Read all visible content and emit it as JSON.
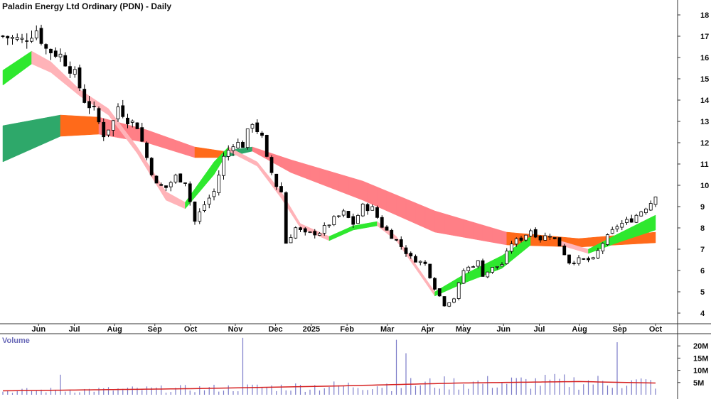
{
  "chart_data": {
    "type": "candlestick",
    "title": "Paladin Energy Ltd Ordinary (PDN) - Daily",
    "price_axis": {
      "ylim": [
        3.5,
        18.7
      ],
      "ticks": [
        4,
        5,
        6,
        7,
        8,
        9,
        10,
        11,
        12,
        13,
        14,
        15,
        16,
        17,
        18
      ],
      "side": "right"
    },
    "x_axis_labels": [
      "Jun",
      "Jul",
      "Aug",
      "Sep",
      "Oct",
      "Nov",
      "Dec",
      "2025",
      "Feb",
      "Mar",
      "Apr",
      "May",
      "Jun",
      "Jul",
      "Aug",
      "Sep",
      "Oct"
    ],
    "volume_panel": {
      "label": "Volume",
      "ylim": [
        0,
        25000000
      ],
      "ticks": [
        "5M",
        "10M",
        "15M",
        "20M"
      ],
      "tick_values": [
        5000000,
        10000000,
        15000000,
        20000000
      ]
    },
    "price_path_anchors": [
      [
        0,
        17.0
      ],
      [
        4,
        16.8
      ],
      [
        7,
        17.3
      ],
      [
        9,
        16.4
      ],
      [
        12,
        16.1
      ],
      [
        15,
        15.2
      ],
      [
        17,
        14.0
      ],
      [
        19,
        13.5
      ],
      [
        21,
        12.4
      ],
      [
        23,
        13.0
      ],
      [
        24,
        13.7
      ],
      [
        26,
        13.1
      ],
      [
        28,
        12.8
      ],
      [
        30,
        11.3
      ],
      [
        32,
        10.0
      ],
      [
        34,
        9.9
      ],
      [
        36,
        10.4
      ],
      [
        38,
        10.2
      ],
      [
        40,
        8.3
      ],
      [
        42,
        9.1
      ],
      [
        44,
        9.7
      ],
      [
        46,
        11.3
      ],
      [
        48,
        12.0
      ],
      [
        50,
        11.9
      ],
      [
        52,
        13.0
      ],
      [
        54,
        12.2
      ],
      [
        55,
        11.2
      ],
      [
        57,
        10.0
      ],
      [
        58,
        9.7
      ],
      [
        59,
        7.3
      ],
      [
        61,
        8.0
      ],
      [
        63,
        7.7
      ],
      [
        66,
        7.8
      ],
      [
        69,
        8.4
      ],
      [
        71,
        8.7
      ],
      [
        73,
        8.2
      ],
      [
        75,
        9.0
      ],
      [
        77,
        8.9
      ],
      [
        79,
        8.1
      ],
      [
        82,
        7.4
      ],
      [
        85,
        6.6
      ],
      [
        88,
        6.3
      ],
      [
        90,
        5.2
      ],
      [
        92,
        4.4
      ],
      [
        94,
        4.7
      ],
      [
        96,
        6.0
      ],
      [
        99,
        6.4
      ],
      [
        100,
        5.8
      ],
      [
        102,
        6.1
      ],
      [
        104,
        6.3
      ],
      [
        106,
        7.3
      ],
      [
        108,
        7.5
      ],
      [
        110,
        7.9
      ],
      [
        112,
        7.5
      ],
      [
        114,
        7.7
      ],
      [
        116,
        7.2
      ],
      [
        118,
        6.4
      ],
      [
        120,
        6.5
      ],
      [
        123,
        6.5
      ],
      [
        125,
        7.3
      ],
      [
        128,
        8.1
      ],
      [
        131,
        8.4
      ],
      [
        133,
        8.8
      ],
      [
        135,
        9.2
      ],
      [
        136,
        9.6
      ]
    ],
    "series": [
      {
        "name": "Volume",
        "kind": "bars",
        "color": "#7b7bc8"
      },
      {
        "name": "",
        "kind": "line",
        "color": "#d62020",
        "values_millions": [
          [
            0,
            1.6
          ],
          [
            40,
            2.5
          ],
          [
            70,
            3.6
          ],
          [
            95,
            4.8
          ],
          [
            120,
            5.4
          ],
          [
            136,
            4.8
          ]
        ]
      }
    ],
    "volume_spikes": [
      {
        "bar": 12,
        "volume": 8200000
      },
      {
        "bar": 50,
        "volume": 23300000
      },
      {
        "bar": 82,
        "volume": 22500000
      },
      {
        "bar": 84,
        "volume": 17000000
      },
      {
        "bar": 128,
        "volume": 21500000
      }
    ],
    "ribbons": [
      {
        "name": "",
        "kind": "long-term",
        "start_bar": 0,
        "top": [
          [
            0,
            12.8
          ],
          [
            12,
            13.3
          ],
          [
            20,
            13.2
          ],
          [
            30,
            12.6
          ],
          [
            40,
            11.8
          ],
          [
            46,
            11.6
          ],
          [
            52,
            11.8
          ],
          [
            60,
            11.2
          ],
          [
            75,
            10.2
          ],
          [
            90,
            8.8
          ],
          [
            105,
            7.8
          ],
          [
            120,
            7.5
          ],
          [
            136,
            7.8
          ]
        ],
        "bottom": [
          [
            0,
            11.1
          ],
          [
            12,
            12.3
          ],
          [
            20,
            12.4
          ],
          [
            30,
            12.0
          ],
          [
            40,
            11.3
          ],
          [
            46,
            11.3
          ],
          [
            52,
            11.6
          ],
          [
            60,
            10.6
          ],
          [
            75,
            9.3
          ],
          [
            90,
            7.8
          ],
          [
            105,
            7.2
          ],
          [
            120,
            7.1
          ],
          [
            136,
            7.3
          ]
        ],
        "colors": {
          "up": "#2ea86a",
          "transition": "#ff6a1a",
          "down": "#ff7f86"
        }
      },
      {
        "name": "",
        "kind": "short-term",
        "start_bar": 0,
        "top": [
          [
            0,
            15.4
          ],
          [
            6,
            16.3
          ],
          [
            10,
            15.8
          ],
          [
            16,
            14.5
          ],
          [
            22,
            13.6
          ],
          [
            28,
            11.8
          ],
          [
            34,
            9.7
          ],
          [
            38,
            9.2
          ],
          [
            44,
            11.1
          ],
          [
            47,
            11.8
          ],
          [
            53,
            11.1
          ],
          [
            58,
            9.7
          ],
          [
            62,
            8.2
          ],
          [
            68,
            7.6
          ],
          [
            73,
            8.1
          ],
          [
            78,
            8.3
          ],
          [
            82,
            7.6
          ],
          [
            90,
            5.0
          ],
          [
            96,
            5.8
          ],
          [
            104,
            6.7
          ],
          [
            110,
            7.6
          ],
          [
            116,
            7.4
          ],
          [
            122,
            7.0
          ],
          [
            128,
            7.7
          ],
          [
            136,
            8.6
          ]
        ],
        "bottom": [
          [
            0,
            14.7
          ],
          [
            6,
            15.7
          ],
          [
            10,
            15.3
          ],
          [
            16,
            14.2
          ],
          [
            22,
            13.3
          ],
          [
            28,
            11.5
          ],
          [
            34,
            9.3
          ],
          [
            38,
            8.9
          ],
          [
            44,
            10.5
          ],
          [
            47,
            11.6
          ],
          [
            53,
            10.9
          ],
          [
            58,
            9.4
          ],
          [
            62,
            8.0
          ],
          [
            68,
            7.4
          ],
          [
            73,
            7.9
          ],
          [
            78,
            8.1
          ],
          [
            82,
            7.4
          ],
          [
            90,
            4.8
          ],
          [
            96,
            5.4
          ],
          [
            104,
            6.1
          ],
          [
            110,
            7.2
          ],
          [
            116,
            7.2
          ],
          [
            122,
            6.8
          ],
          [
            128,
            7.3
          ],
          [
            136,
            7.9
          ]
        ],
        "colors": {
          "up": "#2ee82e",
          "transition": "#ff6a1a",
          "down": "#ffb3b8"
        }
      }
    ]
  }
}
